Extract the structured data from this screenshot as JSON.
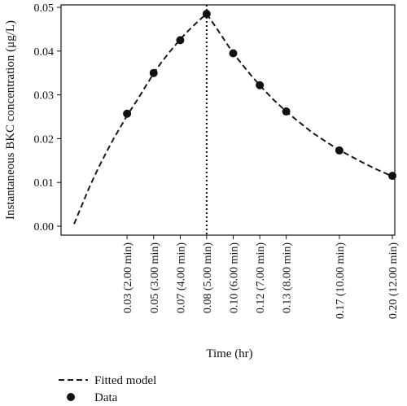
{
  "chart_data": {
    "type": "line",
    "xlabel": "Time (hr)",
    "ylabel": "Instantaneous BKC concentration (μg/L)",
    "xlim": [
      0,
      0.2
    ],
    "ylim": [
      0,
      0.05
    ],
    "x_ticks": [
      {
        "x": 0.0333,
        "label": "0.03 (2.00 min)"
      },
      {
        "x": 0.05,
        "label": "0.05 (3.00 min)"
      },
      {
        "x": 0.0667,
        "label": "0.07 (4.00 min)"
      },
      {
        "x": 0.0833,
        "label": "0.08 (5.00 min)"
      },
      {
        "x": 0.1,
        "label": "0.10 (6.00 min)"
      },
      {
        "x": 0.1167,
        "label": "0.12 (7.00 min)"
      },
      {
        "x": 0.1333,
        "label": "0.13 (8.00 min)"
      },
      {
        "x": 0.1667,
        "label": "0.17 (10.00 min)"
      },
      {
        "x": 0.2,
        "label": "0.20 (12.00 min)"
      }
    ],
    "y_ticks": [
      0.0,
      0.01,
      0.02,
      0.03,
      0.04,
      0.05
    ],
    "y_tick_labels": [
      "0.00",
      "0.01",
      "0.02",
      "0.03",
      "0.04",
      "0.05"
    ],
    "series": [
      {
        "name": "Data",
        "style": "points",
        "x": [
          0.0333,
          0.05,
          0.0667,
          0.0833,
          0.1,
          0.1167,
          0.1333,
          0.1667,
          0.2
        ],
        "y": [
          0.0257,
          0.035,
          0.0425,
          0.0485,
          0.0395,
          0.0322,
          0.0262,
          0.0173,
          0.0115
        ]
      },
      {
        "name": "Fitted model",
        "style": "dashed-line",
        "x": [
          0.0,
          0.005,
          0.01,
          0.015,
          0.02,
          0.025,
          0.03,
          0.0333,
          0.04,
          0.045,
          0.05,
          0.055,
          0.06,
          0.0667,
          0.07,
          0.075,
          0.08,
          0.0833,
          0.09,
          0.1,
          0.11,
          0.1167,
          0.125,
          0.1333,
          0.14,
          0.15,
          0.16,
          0.1667,
          0.18,
          0.19,
          0.2
        ],
        "y": [
          0.0005,
          0.0049,
          0.0092,
          0.0131,
          0.0167,
          0.0201,
          0.0232,
          0.0253,
          0.029,
          0.032,
          0.0349,
          0.0375,
          0.0398,
          0.0427,
          0.044,
          0.0458,
          0.0475,
          0.0485,
          0.045,
          0.0395,
          0.035,
          0.0322,
          0.029,
          0.0262,
          0.0242,
          0.0213,
          0.0189,
          0.0174,
          0.0148,
          0.013,
          0.0114
        ]
      }
    ],
    "vertical_line": {
      "x": 0.0833,
      "style": "dotted"
    },
    "legend": {
      "placement": "bottom-left",
      "entries": [
        {
          "label": "Fitted model",
          "marker": "dashed-line"
        },
        {
          "label": "Data",
          "marker": "circle"
        }
      ]
    },
    "colors": {
      "line": "#1a1a1a",
      "points": "#111111"
    }
  }
}
